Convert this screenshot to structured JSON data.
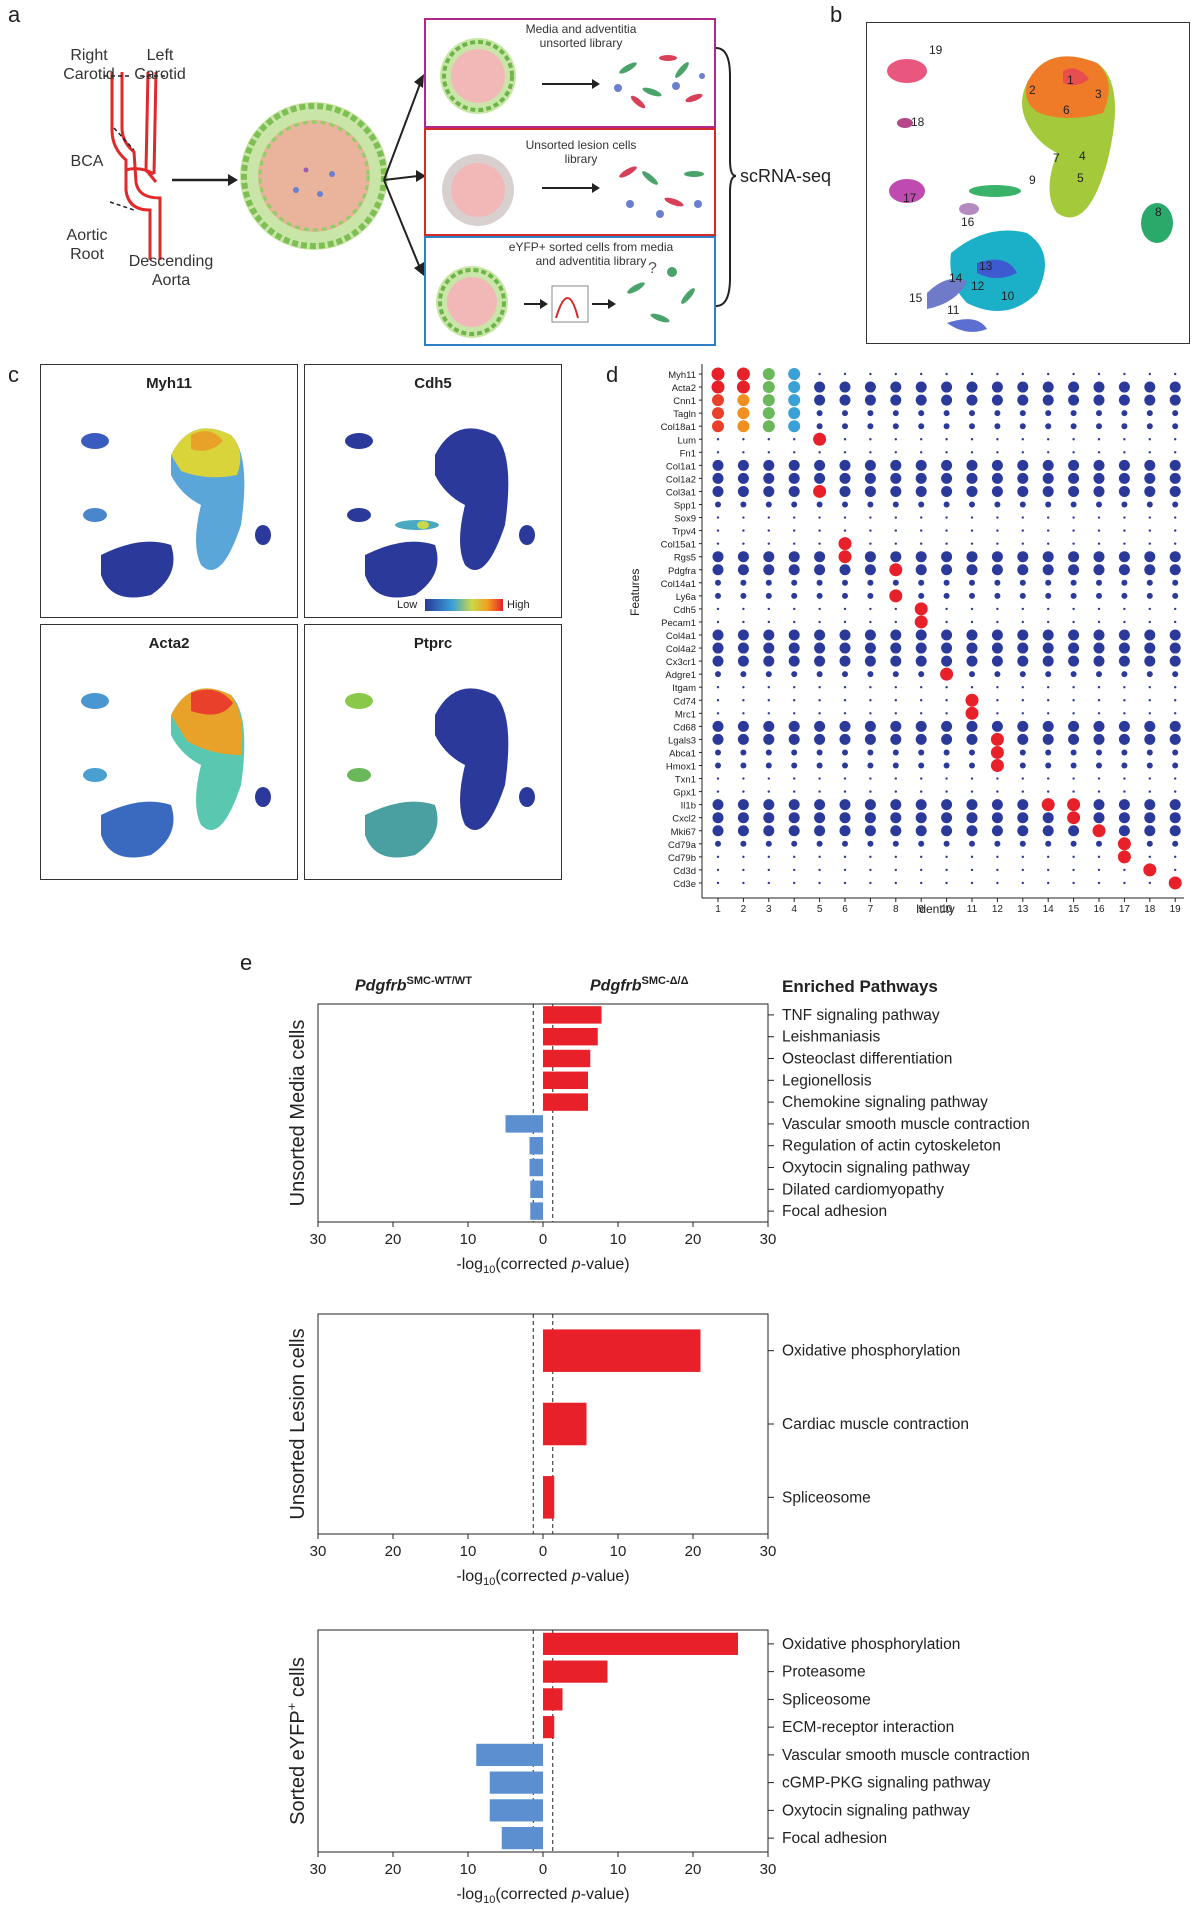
{
  "panels": {
    "a": "a",
    "b": "b",
    "c": "c",
    "d": "d",
    "e": "e"
  },
  "panel_a": {
    "vessel_labels": {
      "right_carotid": "Right\nCarotid",
      "left_carotid": "Left\nCarotid",
      "bca": "BCA",
      "aortic_root": "Aortic\nRoot",
      "descending_aorta": "Descending\nAorta"
    },
    "libraries": [
      {
        "label": "Media and adventitia\nunsorted library",
        "color": "#b0288a"
      },
      {
        "label": "Unsorted lesion cells\nlibrary",
        "color": "#d62a2a"
      },
      {
        "label": "eYFP+ sorted cells from media\nand adventitia library",
        "color": "#2f7fc6"
      }
    ],
    "method": "scRNA-seq",
    "question_mark": "?"
  },
  "panel_b": {
    "cluster_labels": [
      "1",
      "2",
      "3",
      "4",
      "5",
      "6",
      "7",
      "8",
      "9",
      "10",
      "11",
      "12",
      "13",
      "14",
      "15",
      "16",
      "17",
      "18",
      "19"
    ]
  },
  "panel_c": {
    "genes": [
      "Myh11",
      "Cdh5",
      "Acta2",
      "Ptprc"
    ],
    "legend_low": "Low",
    "legend_high": "High"
  },
  "chart_data": [
    {
      "type": "dotplot",
      "panel": "d",
      "title": "",
      "xlabel": "Identity",
      "ylabel": "Features",
      "x": [
        "1",
        "2",
        "3",
        "4",
        "5",
        "6",
        "7",
        "8",
        "9",
        "10",
        "11",
        "12",
        "13",
        "14",
        "15",
        "16",
        "17",
        "18",
        "19"
      ],
      "features": [
        "Myh11",
        "Acta2",
        "Cnn1",
        "Tagln",
        "Col18a1",
        "Lum",
        "Fn1",
        "Col1a1",
        "Col1a2",
        "Col3a1",
        "Spp1",
        "Sox9",
        "Trpv4",
        "Col15a1",
        "Rgs5",
        "Pdgfra",
        "Col14a1",
        "Ly6a",
        "Cdh5",
        "Pecam1",
        "Col4a1",
        "Col4a2",
        "Cx3cr1",
        "Adgre1",
        "Itgam",
        "Cd74",
        "Mrc1",
        "Cd68",
        "Lgals3",
        "Abca1",
        "Hmox1",
        "Txn1",
        "Gpx1",
        "Il1b",
        "Cxcl2",
        "Mki67",
        "Cd79a",
        "Cd79b",
        "Cd3d",
        "Cd3e"
      ],
      "highlights": [
        {
          "feature": "Myh11",
          "cluster": "1",
          "level": "high"
        },
        {
          "feature": "Myh11",
          "cluster": "2",
          "level": "high"
        },
        {
          "feature": "Acta2",
          "cluster": "1",
          "level": "high"
        },
        {
          "feature": "Acta2",
          "cluster": "2",
          "level": "high"
        },
        {
          "feature": "Lum",
          "cluster": "5",
          "level": "high"
        },
        {
          "feature": "Col3a1",
          "cluster": "5",
          "level": "high"
        },
        {
          "feature": "Col15a1",
          "cluster": "6",
          "level": "high"
        },
        {
          "feature": "Rgs5",
          "cluster": "6",
          "level": "high"
        },
        {
          "feature": "Pdgfra",
          "cluster": "8",
          "level": "high"
        },
        {
          "feature": "Ly6a",
          "cluster": "8",
          "level": "high"
        },
        {
          "feature": "Cdh5",
          "cluster": "9",
          "level": "high"
        },
        {
          "feature": "Pecam1",
          "cluster": "9",
          "level": "high"
        },
        {
          "feature": "Adgre1",
          "cluster": "10",
          "level": "high"
        },
        {
          "feature": "Cd74",
          "cluster": "11",
          "level": "high"
        },
        {
          "feature": "Mrc1",
          "cluster": "11",
          "level": "high"
        },
        {
          "feature": "Lgals3",
          "cluster": "12",
          "level": "high"
        },
        {
          "feature": "Abca1",
          "cluster": "12",
          "level": "high"
        },
        {
          "feature": "Hmox1",
          "cluster": "12",
          "level": "high"
        },
        {
          "feature": "Il1b",
          "cluster": "14",
          "level": "high"
        },
        {
          "feature": "Il1b",
          "cluster": "15",
          "level": "high"
        },
        {
          "feature": "Cxcl2",
          "cluster": "15",
          "level": "high"
        },
        {
          "feature": "Mki67",
          "cluster": "16",
          "level": "high"
        },
        {
          "feature": "Cd79a",
          "cluster": "17",
          "level": "high"
        },
        {
          "feature": "Cd79b",
          "cluster": "17",
          "level": "high"
        },
        {
          "feature": "Cd3d",
          "cluster": "18",
          "level": "high"
        },
        {
          "feature": "Cd3e",
          "cluster": "19",
          "level": "high"
        }
      ]
    },
    {
      "type": "bar",
      "panel": "e",
      "orientation": "horizontal",
      "title": "Unsorted Media cells",
      "left_group": "Pdgfrb",
      "left_group_sup": "SMC-WT/WT",
      "right_group": "Pdgfrb",
      "right_group_sup": "SMC-Δ/Δ",
      "right_header": "Enriched  Pathways",
      "xlabel": "-log10(corrected p-value)",
      "x_ticks": [
        "30",
        "20",
        "10",
        "0",
        "10",
        "20",
        "30"
      ],
      "xlim": [
        -30,
        30
      ],
      "threshold_lines": [
        -1.3,
        1.3
      ],
      "categories": [
        "TNF signaling pathway",
        "Leishmaniasis",
        "Osteoclast differentiation",
        "Legionellosis",
        "Chemokine signaling pathway",
        "Vascular smooth muscle contraction",
        "Regulation of actin cytoskeleton",
        "Oxytocin signaling pathway",
        "Dilated cardiomyopathy",
        "Focal adhesion"
      ],
      "values": [
        7.8,
        7.3,
        6.3,
        6.0,
        6.0,
        -5.0,
        -1.8,
        -1.8,
        -1.7,
        -1.7
      ]
    },
    {
      "type": "bar",
      "panel": "e",
      "orientation": "horizontal",
      "title": "Unsorted Lesion cells",
      "xlabel": "-log10(corrected p-value)",
      "x_ticks": [
        "30",
        "20",
        "10",
        "0",
        "10",
        "20",
        "30"
      ],
      "xlim": [
        -30,
        30
      ],
      "threshold_lines": [
        -1.3,
        1.3
      ],
      "categories": [
        "Oxidative phosphorylation",
        "Cardiac muscle contraction",
        "Spliceosome"
      ],
      "values": [
        21.0,
        5.8,
        1.5
      ]
    },
    {
      "type": "bar",
      "panel": "e",
      "orientation": "horizontal",
      "title": "Sorted eYFP+ cells",
      "title_sup": "+",
      "xlabel": "-log10(corrected p-value)",
      "x_ticks": [
        "30",
        "20",
        "10",
        "0",
        "10",
        "20",
        "30"
      ],
      "xlim": [
        -30,
        30
      ],
      "threshold_lines": [
        -1.3,
        1.3
      ],
      "categories": [
        "Oxidative phosphorylation",
        "Proteasome",
        "Spliceosome",
        "ECM-receptor interaction",
        "Vascular smooth muscle contraction",
        "cGMP-PKG signaling pathway",
        "Oxytocin signaling pathway",
        "Focal adhesion"
      ],
      "values": [
        26.0,
        8.6,
        2.6,
        1.5,
        -8.9,
        -7.1,
        -7.1,
        -5.5
      ]
    }
  ],
  "axis_label_parts": {
    "prefix": "-log",
    "sub": "10",
    "middle": "(corrected ",
    "ital": "p",
    "suffix": "-value)"
  },
  "colors": {
    "up": "#e8202a",
    "down": "#5b8fd0",
    "dot_low": "#2b3a9a",
    "dot_high": "#e8202a"
  }
}
